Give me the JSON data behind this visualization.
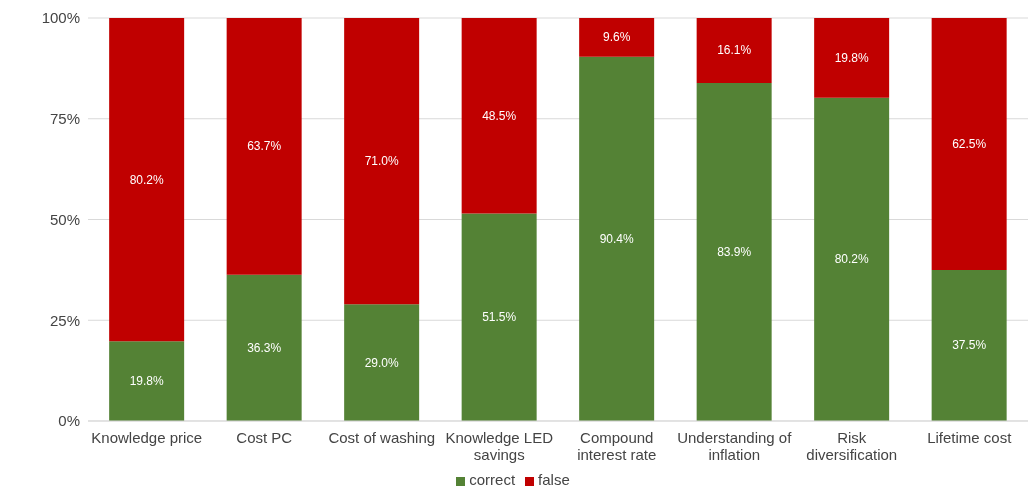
{
  "chart_data": {
    "type": "bar",
    "stacked": true,
    "categories": [
      "Knowledge price",
      "Cost PC",
      "Cost of washing",
      "Knowledge LED savings",
      "Compound interest rate",
      "Understanding of inflation",
      "Risk diversification",
      "Lifetime cost"
    ],
    "series": [
      {
        "name": "correct",
        "color": "#548235",
        "values": [
          19.8,
          36.3,
          29.0,
          51.5,
          90.4,
          83.9,
          80.2,
          37.5
        ],
        "value_labels": [
          "19.8%",
          "36.3%",
          "29.0%",
          "51.5%",
          "90.4%",
          "83.9%",
          "80.2%",
          "37.5%"
        ]
      },
      {
        "name": "false",
        "color": "#c00000",
        "values": [
          80.2,
          63.7,
          71.0,
          48.5,
          9.6,
          16.1,
          19.8,
          62.5
        ],
        "value_labels": [
          "80.2%",
          "63.7%",
          "71.0%",
          "48.5%",
          "9.6%",
          "16.1%",
          "19.8%",
          "62.5%"
        ]
      }
    ],
    "ylim": [
      0,
      100
    ],
    "yticks": [
      {
        "value": 0,
        "label": "0%"
      },
      {
        "value": 25,
        "label": "25%"
      },
      {
        "value": 50,
        "label": "50%"
      },
      {
        "value": 75,
        "label": "75%"
      },
      {
        "value": 100,
        "label": "100%"
      }
    ],
    "grid": "y",
    "legend": "bottom"
  }
}
